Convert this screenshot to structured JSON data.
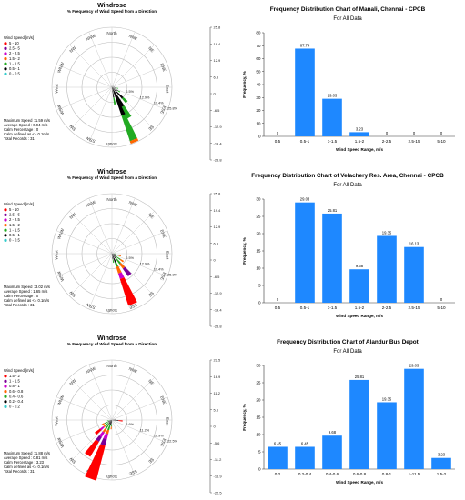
{
  "chart_data": [
    {
      "type": "rose",
      "title": "Windrose",
      "subtitle": "% Frequency of Wind Speed from a Direction",
      "legend_title": "Wind Speed [m/s]",
      "legend": [
        {
          "label": "5 - 10",
          "color": "#ff0000"
        },
        {
          "label": "2.5 - 5",
          "color": "#7a0099"
        },
        {
          "label": "2 - 2.5",
          "color": "#cc00cc"
        },
        {
          "label": "1.5 - 2",
          "color": "#ff6600"
        },
        {
          "label": "1 - 1.5",
          "color": "#22aa22"
        },
        {
          "label": "0.5 - 1",
          "color": "#000000"
        },
        {
          "label": "0 - 0.5",
          "color": "#33cccc"
        }
      ],
      "directions": [
        "North",
        "NNE",
        "NE",
        "ENE",
        "East",
        "ESE",
        "SE",
        "SSE",
        "South",
        "SSW",
        "SW",
        "WSW",
        "West",
        "WNW",
        "NW",
        "NNW"
      ],
      "ring_labels": [
        "6.5%",
        "12.9%",
        "19.4%",
        "25.8%"
      ],
      "scale_ticks": [
        "25.8",
        "19.4",
        "12.9",
        "6.5",
        "0",
        "-6.5",
        "-12.9",
        "-19.4",
        "-25.8"
      ],
      "rmax": 25.8,
      "scale_max": 25.8,
      "petals": [
        {
          "dir": 135,
          "width": 8,
          "segments": [
            {
              "bin": "0.5 - 1",
              "value": 6.5
            },
            {
              "bin": "1 - 1.5",
              "value": 2.5
            }
          ]
        },
        {
          "dir": 150,
          "width": 8,
          "segments": [
            {
              "bin": "0.5 - 1",
              "value": 9.5
            },
            {
              "bin": "1 - 1.5",
              "value": 5.5
            }
          ]
        },
        {
          "dir": 157.5,
          "width": 8,
          "segments": [
            {
              "bin": "0.5 - 1",
              "value": 12.9
            },
            {
              "bin": "1 - 1.5",
              "value": 11.5
            },
            {
              "bin": "1.5 - 2",
              "value": 1.2
            }
          ]
        },
        {
          "dir": 170,
          "width": 6,
          "segments": [
            {
              "bin": "0.5 - 1",
              "value": 4.5
            },
            {
              "bin": "1 - 1.5",
              "value": 3
            }
          ]
        },
        {
          "dir": 120,
          "width": 6,
          "segments": [
            {
              "bin": "0.5 - 1",
              "value": 3
            },
            {
              "bin": "1 - 1.5",
              "value": 1
            }
          ]
        },
        {
          "dir": 100,
          "width": 6,
          "segments": [
            {
              "bin": "0.5 - 1",
              "value": 2
            },
            {
              "bin": "1 - 1.5",
              "value": 0.8
            }
          ]
        },
        {
          "dir": 80,
          "width": 5,
          "segments": [
            {
              "bin": "0.5 - 1",
              "value": 1.2
            }
          ]
        },
        {
          "dir": 45,
          "width": 5,
          "segments": [
            {
              "bin": "0.5 - 1",
              "value": 0.8
            }
          ]
        },
        {
          "dir": 315,
          "width": 5,
          "segments": [
            {
              "bin": "0.5 - 1",
              "value": 0.6
            }
          ]
        }
      ],
      "stats": [
        "Maximum Speed : 1.59 m/s",
        "Average Speed : 0.94 m/s",
        "Calm Percentage : 0",
        "Calm defined as <= 0.1m/s",
        "Total Records : 31"
      ]
    },
    {
      "type": "bar",
      "title": "Frequency Distribution Chart of Manali, Chennai - CPCB",
      "subtitle": "For All Data",
      "xlabel": "Wind Speed Range, m/s",
      "ylabel": "Frequency, %",
      "categories": [
        "0.5",
        "0.5-1",
        "1-1.5",
        "1.5-2",
        "2-2.5",
        "2.5-15",
        "5-10"
      ],
      "values": [
        0,
        67.74,
        29.03,
        3.23,
        0,
        0,
        0
      ],
      "value_labels": [
        "0",
        "67.74",
        "29.03",
        "3.23",
        "0",
        "0",
        "0"
      ],
      "ylim": [
        0,
        80
      ],
      "yticks": [
        0,
        10,
        20,
        30,
        40,
        50,
        60,
        70,
        80
      ],
      "bar_color": "#1e88ff"
    },
    {
      "type": "rose",
      "title": "Windrose",
      "subtitle": "% Frequency of Wind Speed from a Direction",
      "legend_title": "Wind Speed [m/s]",
      "legend": [
        {
          "label": "5 - 10",
          "color": "#ff0000"
        },
        {
          "label": "2.5 - 5",
          "color": "#7a0099"
        },
        {
          "label": "2 - 2.5",
          "color": "#cc00cc"
        },
        {
          "label": "1.5 - 2",
          "color": "#ff6600"
        },
        {
          "label": "1 - 1.5",
          "color": "#22aa22"
        },
        {
          "label": "0.5 - 1",
          "color": "#000000"
        },
        {
          "label": "0 - 0.5",
          "color": "#33cccc"
        }
      ],
      "directions": [
        "North",
        "NNE",
        "NE",
        "ENE",
        "East",
        "ESE",
        "SE",
        "SSE",
        "South",
        "SSW",
        "SW",
        "WSW",
        "West",
        "WNW",
        "NW",
        "NNW"
      ],
      "ring_labels": [
        "6.5%",
        "12.9%",
        "19.4%",
        "25.8%"
      ],
      "scale_ticks": [
        "25.8",
        "19.4",
        "12.9",
        "6.5",
        "0",
        "-6.5",
        "-12.9",
        "-19.4",
        "-25.8"
      ],
      "rmax": 25.8,
      "scale_max": 25.8,
      "petals": [
        {
          "dir": 157.5,
          "width": 10,
          "segments": [
            {
              "bin": "0.5 - 1",
              "value": 4
            },
            {
              "bin": "1 - 1.5",
              "value": 2
            },
            {
              "bin": "1.5 - 2",
              "value": 3
            },
            {
              "bin": "2 - 2.5",
              "value": 2.5
            },
            {
              "bin": "5 - 10",
              "value": 12
            }
          ]
        },
        {
          "dir": 140,
          "width": 9,
          "segments": [
            {
              "bin": "0.5 - 1",
              "value": 3
            },
            {
              "bin": "1 - 1.5",
              "value": 2.5
            },
            {
              "bin": "1.5 - 2",
              "value": 2.5
            },
            {
              "bin": "2.5 - 5",
              "value": 4
            }
          ]
        },
        {
          "dir": 125,
          "width": 7,
          "segments": [
            {
              "bin": "0.5 - 1",
              "value": 2
            },
            {
              "bin": "1 - 1.5",
              "value": 2.5
            },
            {
              "bin": "1.5 - 2",
              "value": 1.5
            }
          ]
        },
        {
          "dir": 105,
          "width": 6,
          "segments": [
            {
              "bin": "0.5 - 1",
              "value": 1.5
            },
            {
              "bin": "1 - 1.5",
              "value": 1.5
            },
            {
              "bin": "1.5 - 2",
              "value": 1
            }
          ]
        },
        {
          "dir": 170,
          "width": 6,
          "segments": [
            {
              "bin": "0.5 - 1",
              "value": 2.5
            },
            {
              "bin": "1 - 1.5",
              "value": 1.5
            }
          ]
        },
        {
          "dir": 90,
          "width": 5,
          "segments": [
            {
              "bin": "0.5 - 1",
              "value": 1
            },
            {
              "bin": "1 - 1.5",
              "value": 0.8
            }
          ]
        },
        {
          "dir": 330,
          "width": 4,
          "segments": [
            {
              "bin": "0.5 - 1",
              "value": 0.8
            }
          ]
        }
      ],
      "stats": [
        "Maximum Speed : 3.02 m/s",
        "Average Speed : 1.65 m/s",
        "Calm Percentage : 0",
        "Calm defined as <= 0.1m/s",
        "Total Records : 31"
      ]
    },
    {
      "type": "bar",
      "title": "Frequency Distribution Chart of Velachery Res. Area, Chennai - CPCB",
      "subtitle": "For All Data",
      "xlabel": "Wind Speed Range, m/s",
      "ylabel": "Frequency, %",
      "categories": [
        "0.5",
        "0.5-1",
        "1-1.5",
        "1.5-2",
        "2-2.5",
        "2.5-15",
        "5-10"
      ],
      "values": [
        0,
        29.03,
        25.81,
        9.68,
        19.35,
        16.13,
        0
      ],
      "value_labels": [
        "0",
        "29.03",
        "25.81",
        "9.68",
        "19.35",
        "16.13",
        "0"
      ],
      "ylim": [
        0,
        30
      ],
      "yticks": [
        0,
        5,
        10,
        15,
        20,
        25,
        30
      ],
      "bar_color": "#1e88ff"
    },
    {
      "type": "rose",
      "title": "Windrose",
      "subtitle": "% Frequency of Wind Speed from a Direction",
      "legend_title": "Wind Speed [m/s]",
      "legend": [
        {
          "label": "1.5 - 2",
          "color": "#ff0000"
        },
        {
          "label": "1 - 1.5",
          "color": "#7a0099"
        },
        {
          "label": "0.8 - 1",
          "color": "#cc00cc"
        },
        {
          "label": "0.6 - 0.8",
          "color": "#ff6600"
        },
        {
          "label": "0.4 - 0.6",
          "color": "#22aa22"
        },
        {
          "label": "0.2 - 0.4",
          "color": "#000000"
        },
        {
          "label": "0 - 0.2",
          "color": "#33cccc"
        }
      ],
      "directions": [
        "North",
        "NNE",
        "NE",
        "ENE",
        "East",
        "ESE",
        "SE",
        "SSE",
        "South",
        "SSW",
        "SW",
        "WSW",
        "West",
        "WNW",
        "NW",
        "NNW"
      ],
      "ring_labels": [
        "5.6%",
        "11.2%",
        "16.9%",
        "22.5%"
      ],
      "scale_ticks": [
        "22.5",
        "16.9",
        "11.2",
        "5.6",
        "0",
        "-5.6",
        "-11.2",
        "-16.9",
        "-22.5"
      ],
      "rmax": 22.5,
      "scale_max": 22.5,
      "petals": [
        {
          "dir": 200,
          "width": 11,
          "segments": [
            {
              "bin": "0.2 - 0.4",
              "value": 2
            },
            {
              "bin": "0.4 - 0.6",
              "value": 2
            },
            {
              "bin": "0.6 - 0.8",
              "value": 1.5
            },
            {
              "bin": "0.8 - 1",
              "value": 2
            },
            {
              "bin": "1 - 1.5",
              "value": 2.5
            },
            {
              "bin": "1.5 - 2",
              "value": 13.5
            }
          ]
        },
        {
          "dir": 215,
          "width": 9,
          "segments": [
            {
              "bin": "0.2 - 0.4",
              "value": 2
            },
            {
              "bin": "0.4 - 0.6",
              "value": 2
            },
            {
              "bin": "0.6 - 0.8",
              "value": 1.5
            },
            {
              "bin": "0.8 - 1",
              "value": 2
            },
            {
              "bin": "1 - 1.5",
              "value": 2
            },
            {
              "bin": "1.5 - 2",
              "value": 6.5
            }
          ]
        },
        {
          "dir": 230,
          "width": 8,
          "segments": [
            {
              "bin": "0.2 - 0.4",
              "value": 1.5
            },
            {
              "bin": "0.4 - 0.6",
              "value": 1.5
            },
            {
              "bin": "0.6 - 0.8",
              "value": 1
            },
            {
              "bin": "0.8 - 1",
              "value": 1.5
            },
            {
              "bin": "1.5 - 2",
              "value": 2.5
            }
          ]
        },
        {
          "dir": 245,
          "width": 7,
          "segments": [
            {
              "bin": "0.2 - 0.4",
              "value": 1.5
            },
            {
              "bin": "0.4 - 0.6",
              "value": 1.5
            },
            {
              "bin": "0.6 - 0.8",
              "value": 1
            }
          ]
        },
        {
          "dir": 260,
          "width": 6,
          "segments": [
            {
              "bin": "0.2 - 0.4",
              "value": 1
            },
            {
              "bin": "0.4 - 0.6",
              "value": 0.8
            }
          ]
        },
        {
          "dir": 185,
          "width": 7,
          "segments": [
            {
              "bin": "0.2 - 0.4",
              "value": 1.5
            },
            {
              "bin": "0.4 - 0.6",
              "value": 1
            },
            {
              "bin": "0.6 - 0.8",
              "value": 1
            }
          ]
        },
        {
          "dir": 95,
          "width": 6,
          "segments": [
            {
              "bin": "0.2 - 0.4",
              "value": 2.5
            },
            {
              "bin": "1.5 - 2",
              "value": 1.5
            }
          ]
        },
        {
          "dir": 80,
          "width": 5,
          "segments": [
            {
              "bin": "0.2 - 0.4",
              "value": 1.5
            }
          ]
        }
      ],
      "stats": [
        "Maximum Speed : 1.88 m/s",
        "Average Speed : 0.81 m/s",
        "Calm Percentage : 3.23",
        "Calm defined as <= 0.1m/s",
        "Total Records : 31"
      ]
    },
    {
      "type": "bar",
      "title": "Frequency Distribution Chart of Alandur Bus Depot",
      "subtitle": "For All Data",
      "xlabel": "Wind Speed Range, m/s",
      "ylabel": "Frequency, %",
      "categories": [
        "0.2",
        "0.2-0.4",
        "0.4-0.6",
        "0.6-0.8",
        "0.8-1",
        "1-11.5",
        "1.5-2"
      ],
      "values": [
        6.45,
        6.45,
        9.68,
        25.81,
        19.35,
        29.03,
        3.23
      ],
      "value_labels": [
        "6.45",
        "6.45",
        "9.68",
        "25.81",
        "19.35",
        "29.03",
        "3.23"
      ],
      "ylim": [
        0,
        30
      ],
      "yticks": [
        0,
        5,
        10,
        15,
        20,
        25,
        30
      ],
      "bar_color": "#1e88ff"
    }
  ]
}
